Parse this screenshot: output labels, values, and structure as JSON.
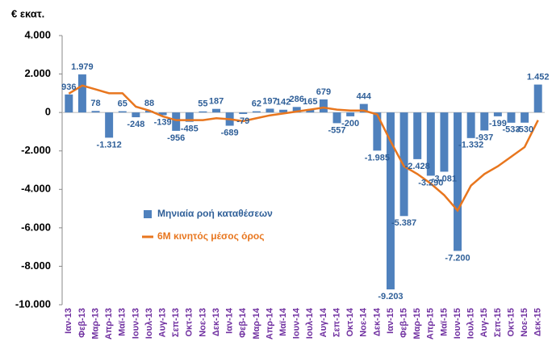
{
  "chart_data": {
    "type": "bar",
    "y_label": "€ εκατ.",
    "categories": [
      "Ιαν-13",
      "Φεβ-13",
      "Μαρ-13",
      "Απρ-13",
      "Μαϊ-13",
      "Ιουν-13",
      "Ιουλ-13",
      "Αυγ-13",
      "Σεπ-13",
      "Οκτ-13",
      "Νοε-13",
      "Δεκ-13",
      "Ιαν-14",
      "Φεβ-14",
      "Μαρ-14",
      "Απρ-14",
      "Μαϊ-14",
      "Ιουν-14",
      "Ιουλ-14",
      "Αυγ-14",
      "Σεπ-14",
      "Οκτ-14",
      "Νοε-14",
      "Δεκ-14",
      "Ιαν-15",
      "Φεβ-15",
      "Μαρ-15",
      "Απρ-15",
      "Μαϊ-15",
      "Ιουν-15",
      "Ιουλ-15",
      "Αυγ-15",
      "Σεπ-15",
      "Οκτ-15",
      "Νοε-15",
      "Δεκ-15"
    ],
    "series": [
      {
        "name": "Μηνιαία ροή καταθέσεων",
        "type": "bar",
        "color": "#4f81bd",
        "values": [
          936,
          1979,
          78,
          -1312,
          65,
          -248,
          88,
          -139,
          -956,
          -485,
          55,
          187,
          -689,
          -79,
          62,
          197,
          142,
          286,
          165,
          679,
          -557,
          -200,
          444,
          -1985,
          -9203,
          -5387,
          -2428,
          -3290,
          -3081,
          -7200,
          -1332,
          -937,
          -199,
          -533,
          -530,
          1452
        ],
        "value_labels": [
          "936",
          "1.979",
          "78",
          "-1.312",
          "65",
          "-248",
          "88",
          "-139",
          "-956",
          "-485",
          "55",
          "187",
          "-689",
          "-79",
          "62",
          "197",
          "142",
          "286",
          "165",
          "679",
          "-557",
          "-200",
          "444",
          "-1.985",
          "-9.203",
          "-5.387",
          "-2.428",
          "-3.290",
          "-3.081",
          "-7.200",
          "-1.332",
          "-937",
          "-199",
          "-533",
          "-530",
          "1.452"
        ]
      },
      {
        "name": "6M κινητός μέσος όρος",
        "type": "line",
        "color": "#e8761e",
        "values": [
          980,
          1400,
          1200,
          1000,
          1000,
          300,
          100,
          -200,
          -400,
          -400,
          -400,
          -300,
          -350,
          -450,
          -300,
          -150,
          -50,
          50,
          150,
          250,
          150,
          100,
          100,
          -100,
          -1500,
          -2800,
          -3200,
          -3700,
          -4300,
          -5100,
          -3800,
          -3200,
          -2800,
          -2300,
          -1800,
          -400
        ]
      }
    ],
    "ylim": [
      -10000,
      4000
    ],
    "yticks": [
      {
        "value": 4000,
        "label": "4.000"
      },
      {
        "value": 2000,
        "label": "2.000"
      },
      0,
      {
        "value": -2000,
        "label": "-2.000"
      },
      {
        "value": -4000,
        "label": "-4.000"
      },
      {
        "value": -6000,
        "label": "-6.000"
      },
      {
        "value": -8000,
        "label": "-8.000"
      },
      {
        "value": -10000,
        "label": "-10.000"
      }
    ]
  }
}
